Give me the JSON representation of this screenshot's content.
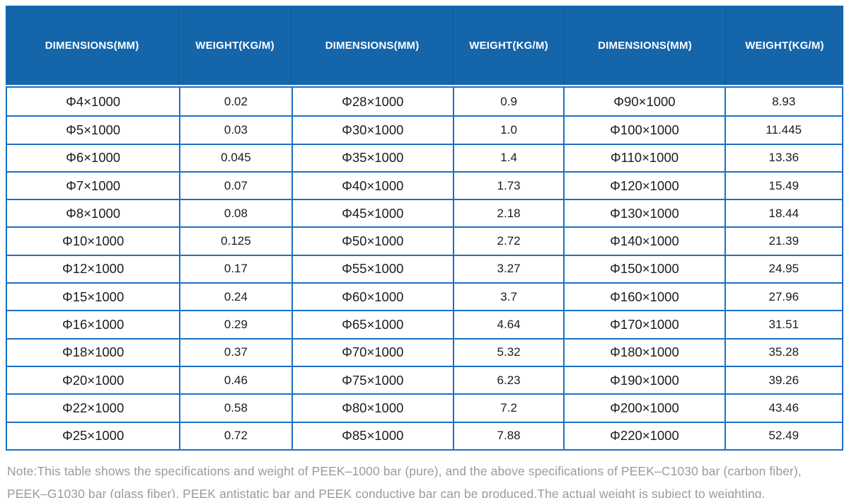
{
  "table": {
    "column_headers": [
      "DIMENSIONS(MM)",
      "WEIGHT(KG/M)",
      "DIMENSIONS(MM)",
      "WEIGHT(KG/M)",
      "DIMENSIONS(MM)",
      "WEIGHT(KG/M)"
    ],
    "rows": [
      [
        "Φ4×1000",
        "0.02",
        "Φ28×1000",
        "0.9",
        "Φ90×1000",
        "8.93"
      ],
      [
        "Φ5×1000",
        "0.03",
        "Φ30×1000",
        "1.0",
        "Φ100×1000",
        "11.445"
      ],
      [
        "Φ6×1000",
        "0.045",
        "Φ35×1000",
        "1.4",
        "Φ110×1000",
        "13.36"
      ],
      [
        "Φ7×1000",
        "0.07",
        "Φ40×1000",
        "1.73",
        "Φ120×1000",
        "15.49"
      ],
      [
        "Φ8×1000",
        "0.08",
        "Φ45×1000",
        "2.18",
        "Φ130×1000",
        "18.44"
      ],
      [
        "Φ10×1000",
        "0.125",
        "Φ50×1000",
        "2.72",
        "Φ140×1000",
        "21.39"
      ],
      [
        "Φ12×1000",
        "0.17",
        "Φ55×1000",
        "3.27",
        "Φ150×1000",
        "24.95"
      ],
      [
        "Φ15×1000",
        "0.24",
        "Φ60×1000",
        "3.7",
        "Φ160×1000",
        "27.96"
      ],
      [
        "Φ16×1000",
        "0.29",
        "Φ65×1000",
        "4.64",
        "Φ170×1000",
        "31.51"
      ],
      [
        "Φ18×1000",
        "0.37",
        "Φ70×1000",
        "5.32",
        "Φ180×1000",
        "35.28"
      ],
      [
        "Φ20×1000",
        "0.46",
        "Φ75×1000",
        "6.23",
        "Φ190×1000",
        "39.26"
      ],
      [
        "Φ22×1000",
        "0.58",
        "Φ80×1000",
        "7.2",
        "Φ200×1000",
        "43.46"
      ],
      [
        "Φ25×1000",
        "0.72",
        "Φ85×1000",
        "7.88",
        "Φ220×1000",
        "52.49"
      ]
    ]
  },
  "note": {
    "text": "Note:This table shows the specifications and weight of PEEK–1000 bar (pure), and the above specifications of PEEK–C1030 bar (carbon fiber), PEEK–G1030 bar (glass fiber), PEEK antistatic bar and PEEK conductive bar can be produced.The actual weight is subject to weighting."
  },
  "colors": {
    "header_background": "#1565ab",
    "header_text": "#ffffff",
    "grid_border": "#1c6fc4",
    "body_text": "#1c1c1c",
    "note_text": "#9b9b9b"
  }
}
